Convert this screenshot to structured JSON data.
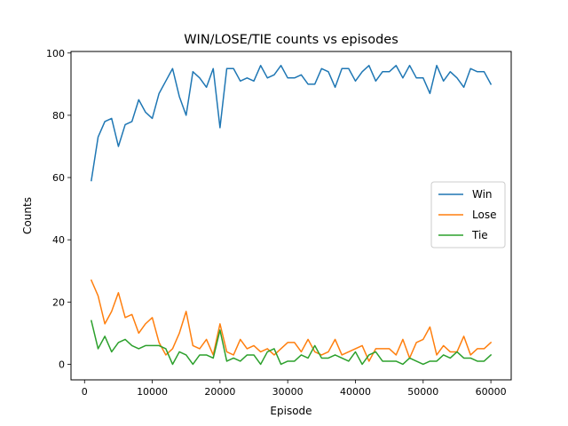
{
  "chart_data": {
    "type": "line",
    "title": "WIN/LOSE/TIE counts vs episodes",
    "xlabel": "Episode",
    "ylabel": "Counts",
    "xlim": [
      -2000,
      63000
    ],
    "ylim": [
      -5,
      100.5
    ],
    "xticks": [
      0,
      10000,
      20000,
      30000,
      40000,
      50000,
      60000
    ],
    "yticks": [
      0,
      20,
      40,
      60,
      80,
      100
    ],
    "grid": false,
    "legend_position": "center-right",
    "x": [
      1000,
      2000,
      3000,
      4000,
      5000,
      6000,
      7000,
      8000,
      9000,
      10000,
      11000,
      12000,
      13000,
      14000,
      15000,
      16000,
      17000,
      18000,
      19000,
      20000,
      21000,
      22000,
      23000,
      24000,
      25000,
      26000,
      27000,
      28000,
      29000,
      30000,
      31000,
      32000,
      33000,
      34000,
      35000,
      36000,
      37000,
      38000,
      39000,
      40000,
      41000,
      42000,
      43000,
      44000,
      45000,
      46000,
      47000,
      48000,
      49000,
      50000,
      51000,
      52000,
      53000,
      54000,
      55000,
      56000,
      57000,
      58000,
      59000,
      60000
    ],
    "series": [
      {
        "name": "Win",
        "color": "#1f77b4",
        "values": [
          59,
          73,
          78,
          79,
          70,
          77,
          78,
          85,
          81,
          79,
          87,
          91,
          95,
          86,
          80,
          94,
          92,
          89,
          95,
          76,
          95,
          95,
          91,
          92,
          91,
          96,
          92,
          93,
          96,
          92,
          92,
          93,
          90,
          90,
          95,
          94,
          89,
          95,
          95,
          91,
          94,
          96,
          91,
          94,
          94,
          96,
          92,
          96,
          92,
          92,
          87,
          96,
          91,
          94,
          92,
          89,
          95,
          94,
          94,
          90
        ]
      },
      {
        "name": "Lose",
        "color": "#ff7f0e",
        "values": [
          27,
          22,
          13,
          17,
          23,
          15,
          16,
          10,
          13,
          15,
          7,
          3,
          5,
          10,
          17,
          6,
          5,
          8,
          3,
          13,
          4,
          3,
          8,
          5,
          6,
          4,
          5,
          3,
          5,
          7,
          7,
          4,
          8,
          4,
          3,
          4,
          8,
          3,
          4,
          5,
          6,
          1,
          5,
          5,
          5,
          3,
          8,
          2,
          7,
          8,
          12,
          3,
          6,
          4,
          4,
          9,
          3,
          5,
          5,
          7
        ]
      },
      {
        "name": "Tie",
        "color": "#2ca02c",
        "values": [
          14,
          5,
          9,
          4,
          7,
          8,
          6,
          5,
          6,
          6,
          6,
          5,
          0,
          4,
          3,
          0,
          3,
          3,
          2,
          11,
          1,
          2,
          1,
          3,
          3,
          0,
          4,
          5,
          0,
          1,
          1,
          3,
          2,
          6,
          2,
          2,
          3,
          2,
          1,
          4,
          0,
          3,
          4,
          1,
          1,
          1,
          0,
          2,
          1,
          0,
          1,
          1,
          3,
          2,
          4,
          2,
          2,
          1,
          1,
          3
        ]
      }
    ]
  }
}
